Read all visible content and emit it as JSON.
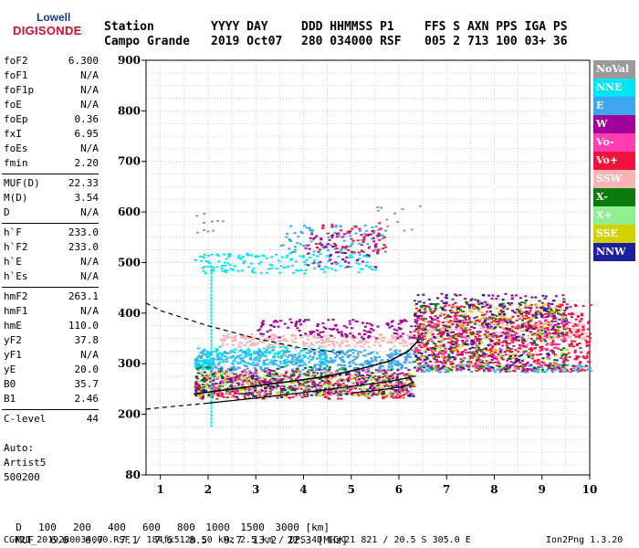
{
  "logo": {
    "word": "Lowell",
    "brand": "DIGISONDE"
  },
  "header": {
    "labels": [
      "Station",
      "YYYY DAY",
      "DDD HHMMSS P1",
      "FFS S AXN PPS IGA PS"
    ],
    "values": [
      "Campo Grande",
      "2019 Oct07",
      "280 034000 RSF",
      "005 2 713 100 03+ 36"
    ]
  },
  "params": [
    {
      "k": "foF2",
      "v": "6.300"
    },
    {
      "k": "foF1",
      "v": "N/A"
    },
    {
      "k": "foF1p",
      "v": "N/A"
    },
    {
      "k": "foE",
      "v": "N/A"
    },
    {
      "k": "foEp",
      "v": "0.36"
    },
    {
      "k": "fxI",
      "v": "6.95"
    },
    {
      "k": "foEs",
      "v": "N/A"
    },
    {
      "k": "fmin",
      "v": "2.20"
    },
    {
      "k": "MUF(D)",
      "v": "22.33"
    },
    {
      "k": "M(D)",
      "v": "3.54"
    },
    {
      "k": "D",
      "v": "N/A"
    },
    {
      "k": "h`F",
      "v": "233.0"
    },
    {
      "k": "h`F2",
      "v": "233.0"
    },
    {
      "k": "h`E",
      "v": "N/A"
    },
    {
      "k": "h`Es",
      "v": "N/A"
    },
    {
      "k": "hmF2",
      "v": "263.1"
    },
    {
      "k": "hmF1",
      "v": "N/A"
    },
    {
      "k": "hmE",
      "v": "110.0"
    },
    {
      "k": "yF2",
      "v": "37.8"
    },
    {
      "k": "yF1",
      "v": "N/A"
    },
    {
      "k": "yE",
      "v": "20.0"
    },
    {
      "k": "B0",
      "v": "35.7"
    },
    {
      "k": "B1",
      "v": "2.46"
    },
    {
      "k": "C-level",
      "v": "44"
    }
  ],
  "autoscaling": {
    "label": "Auto:",
    "method": "Artist5",
    "version": "500200"
  },
  "legend": [
    {
      "label": "NoVal",
      "color": "#9a9a9a"
    },
    {
      "label": "NNE",
      "color": "#00e5f5"
    },
    {
      "label": "E",
      "color": "#3ea6f0"
    },
    {
      "label": "W",
      "color": "#a2009a"
    },
    {
      "label": "Vo-",
      "color": "#ff3db0"
    },
    {
      "label": "Vo+",
      "color": "#f0143c"
    },
    {
      "label": "SSW",
      "color": "#f7b4b4"
    },
    {
      "label": "X-",
      "color": "#0a7a0a"
    },
    {
      "label": "X+",
      "color": "#8ef08e"
    },
    {
      "label": "SSE",
      "color": "#d2d200"
    },
    {
      "label": "NNW",
      "color": "#1e1ea0"
    }
  ],
  "footer": {
    "d_label": "D",
    "d_values": [
      "100",
      "200",
      "400",
      "600",
      "800",
      "1000",
      "1500",
      "3000"
    ],
    "d_unit": "[km]",
    "muf_label": "MUF",
    "muf_values": [
      "6.6",
      "6.7",
      "7.1",
      "7.6",
      "8.5",
      "9.7",
      "13.2",
      "22.3"
    ],
    "muf_unit": "[MHz]",
    "file_line": "CGK21_2019280034000.RSF / 184fx512h 50 kHz 2.5 km / DPS-4D CGK21 821 / 20.5 S 305.0 E",
    "version": "Ion2Png 1.3.20"
  },
  "chart_data": {
    "type": "scatter",
    "xlabel": "",
    "ylabel": "",
    "xlim": [
      0.7,
      10
    ],
    "ylim": [
      80,
      900
    ],
    "xticks": [
      1,
      2,
      3,
      4,
      5,
      6,
      7,
      8,
      9,
      10
    ],
    "yticks": [
      80,
      200,
      300,
      400,
      500,
      600,
      700,
      800,
      900
    ],
    "grid": true,
    "legend_position": "right",
    "f2_trace": [
      [
        1.7,
        240
      ],
      [
        2.5,
        250
      ],
      [
        3.5,
        262
      ],
      [
        4.5,
        275
      ],
      [
        5.2,
        290
      ],
      [
        5.8,
        305
      ],
      [
        6.2,
        325
      ],
      [
        6.4,
        345
      ]
    ],
    "profile_curve": [
      [
        2,
        222
      ],
      [
        3,
        232
      ],
      [
        4,
        243
      ],
      [
        5,
        255
      ],
      [
        5.8,
        265
      ],
      [
        6.2,
        272
      ],
      [
        6.3,
        263
      ],
      [
        6.1,
        255
      ],
      [
        5.6,
        248
      ],
      [
        5,
        242
      ]
    ],
    "dashed_lower": [
      [
        0.7,
        210
      ],
      [
        1,
        213
      ],
      [
        2,
        222
      ]
    ],
    "dashed_upper": [
      [
        0.7,
        420
      ],
      [
        1,
        405
      ],
      [
        2,
        375
      ],
      [
        3,
        350
      ],
      [
        4,
        330
      ],
      [
        4.8,
        322
      ]
    ],
    "echo_bands": [
      {
        "series": "NNE",
        "x": [
          1.7,
          2.1
        ],
        "y": [
          290,
          310
        ],
        "n": 60
      },
      {
        "series": "E",
        "x": [
          1.7,
          6.3
        ],
        "y": [
          288,
          330
        ],
        "n": 500
      },
      {
        "series": "E",
        "x": [
          6.3,
          10
        ],
        "y": [
          285,
          300
        ],
        "n": 160
      },
      {
        "series": "SSW",
        "x": [
          2.2,
          6.3
        ],
        "y": [
          335,
          360
        ],
        "n": 260
      },
      {
        "series": "SSW",
        "x": [
          6.4,
          9.9
        ],
        "y": [
          350,
          385
        ],
        "n": 260
      },
      {
        "series": "W",
        "x": [
          3.0,
          6.5
        ],
        "y": [
          350,
          390
        ],
        "n": 150
      },
      {
        "series": "NNE",
        "x": [
          1.7,
          4.5
        ],
        "y": [
          300,
          335
        ],
        "n": 120
      },
      {
        "series": "NNE",
        "x": [
          1.7,
          5.5
        ],
        "y": [
          480,
          520
        ],
        "n": 160
      },
      {
        "series": "E",
        "x": [
          3.5,
          5.7
        ],
        "y": [
          520,
          575
        ],
        "n": 90
      },
      {
        "series": "Vo+",
        "x": [
          4.2,
          5.7
        ],
        "y": [
          520,
          580
        ],
        "n": 60
      },
      {
        "series": "W",
        "x": [
          4.0,
          5.6
        ],
        "y": [
          490,
          560
        ],
        "n": 60
      },
      {
        "series": "Vo+",
        "x": [
          1.7,
          6.3
        ],
        "y": [
          232,
          280
        ],
        "n": 320
      },
      {
        "series": "SSE",
        "x": [
          1.7,
          6.3
        ],
        "y": [
          236,
          285
        ],
        "n": 260
      },
      {
        "series": "X-",
        "x": [
          1.7,
          6.3
        ],
        "y": [
          240,
          295
        ],
        "n": 160
      },
      {
        "series": "NNW",
        "x": [
          1.7,
          6.3
        ],
        "y": [
          235,
          285
        ],
        "n": 160
      },
      {
        "series": "W",
        "x": [
          1.7,
          6.3
        ],
        "y": [
          238,
          290
        ],
        "n": 160
      },
      {
        "series": "Vo-",
        "x": [
          2.0,
          6.3
        ],
        "y": [
          238,
          290
        ],
        "n": 130
      },
      {
        "series": "X+",
        "x": [
          1.7,
          6.3
        ],
        "y": [
          240,
          285
        ],
        "n": 90
      },
      {
        "series": "Vo+",
        "x": [
          6.3,
          10
        ],
        "y": [
          285,
          420
        ],
        "n": 700
      },
      {
        "series": "W",
        "x": [
          6.3,
          9.5
        ],
        "y": [
          290,
          440
        ],
        "n": 260
      },
      {
        "series": "X-",
        "x": [
          6.3,
          9.5
        ],
        "y": [
          290,
          430
        ],
        "n": 200
      },
      {
        "series": "SSE",
        "x": [
          6.3,
          9.5
        ],
        "y": [
          290,
          420
        ],
        "n": 180
      },
      {
        "series": "NNW",
        "x": [
          6.3,
          9.5
        ],
        "y": [
          290,
          440
        ],
        "n": 160
      },
      {
        "series": "Vo-",
        "x": [
          6.3,
          9.5
        ],
        "y": [
          290,
          400
        ],
        "n": 130
      },
      {
        "series": "NoVal",
        "x": [
          1.7,
          2.3
        ],
        "y": [
          560,
          600
        ],
        "n": 10
      },
      {
        "series": "NoVal",
        "x": [
          5.5,
          6.5
        ],
        "y": [
          560,
          620
        ],
        "n": 12
      }
    ],
    "vertical_streak": {
      "series": "NNE",
      "x": 2.05,
      "y": [
        180,
        500
      ]
    }
  }
}
